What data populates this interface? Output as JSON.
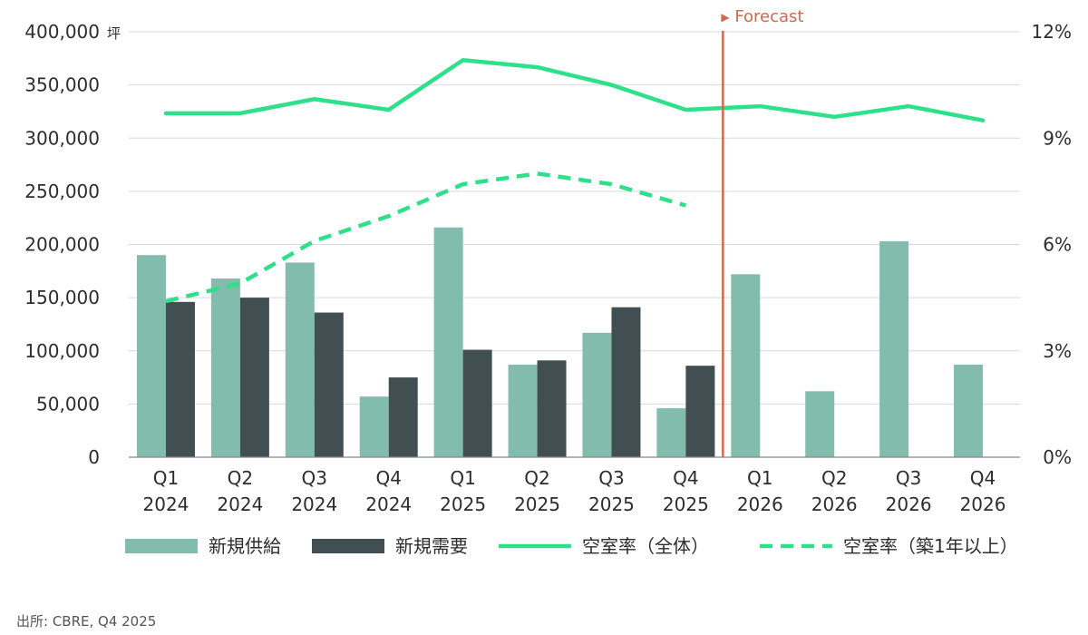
{
  "chart_data": {
    "type": "bar",
    "categories": [
      [
        "Q1",
        "2024"
      ],
      [
        "Q2",
        "2024"
      ],
      [
        "Q3",
        "2024"
      ],
      [
        "Q4",
        "2024"
      ],
      [
        "Q1",
        "2025"
      ],
      [
        "Q2",
        "2025"
      ],
      [
        "Q3",
        "2025"
      ],
      [
        "Q4",
        "2025"
      ],
      [
        "Q1",
        "2026"
      ],
      [
        "Q2",
        "2026"
      ],
      [
        "Q3",
        "2026"
      ],
      [
        "Q4",
        "2026"
      ]
    ],
    "y_unit": "坪",
    "ylim": [
      0,
      400000
    ],
    "y_ticks": [
      "0",
      "50,000",
      "100,000",
      "150,000",
      "200,000",
      "250,000",
      "300,000",
      "350,000",
      "400,000"
    ],
    "y2lim": [
      0,
      12
    ],
    "y2_ticks": [
      "0%",
      "3%",
      "6%",
      "9%",
      "12%"
    ],
    "series": [
      {
        "name": "新規供給",
        "kind": "bar",
        "axis": "left",
        "color": "#82bcad",
        "values": [
          190000,
          168000,
          183000,
          57000,
          216000,
          87000,
          117000,
          46000,
          172000,
          62000,
          203000,
          87000
        ]
      },
      {
        "name": "新規需要",
        "kind": "bar",
        "axis": "left",
        "color": "#424f52",
        "values": [
          146000,
          150000,
          136000,
          75000,
          101000,
          91000,
          141000,
          86000,
          null,
          null,
          null,
          null
        ]
      },
      {
        "name": "空室率（全体）",
        "kind": "line",
        "axis": "right",
        "color": "#2ee08a",
        "dash": false,
        "values": [
          9.7,
          9.7,
          10.1,
          9.8,
          11.2,
          11.0,
          10.5,
          9.8,
          9.9,
          9.6,
          9.9,
          9.5
        ]
      },
      {
        "name": "空室率（築1年以上）",
        "kind": "line",
        "axis": "right",
        "color": "#2ee08a",
        "dash": true,
        "values": [
          4.4,
          4.9,
          6.1,
          6.8,
          7.7,
          8.0,
          7.7,
          7.1,
          null,
          null,
          null,
          null
        ]
      }
    ],
    "annotation": {
      "text": "Forecast",
      "marker": "▶",
      "after_index": 7,
      "color": "#d2694a"
    },
    "grid": true,
    "legend_position": "bottom"
  },
  "source_note": "出所: CBRE, Q4 2025"
}
